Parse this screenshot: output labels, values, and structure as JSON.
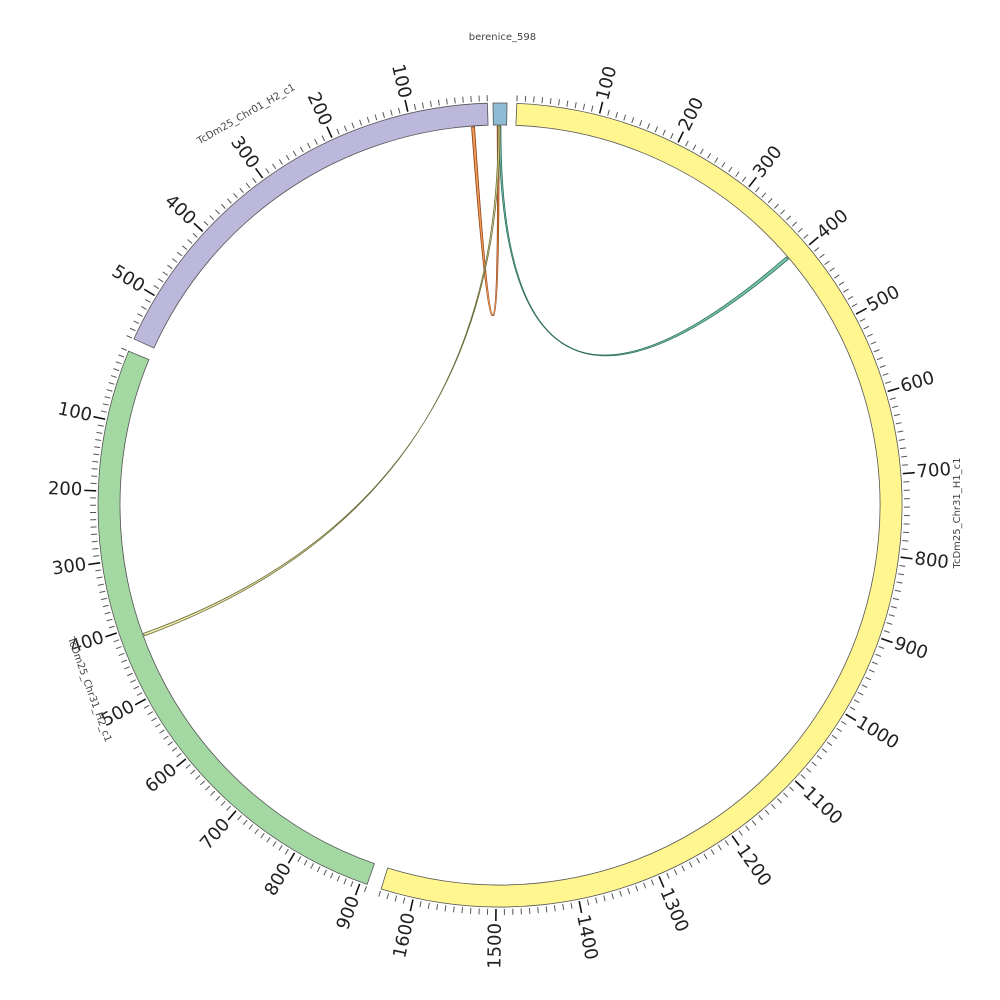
{
  "diagram": {
    "type": "circos",
    "segments": [
      {
        "id": "berenice",
        "name": "berenice_598",
        "length": 14,
        "color": "#8fbcd4",
        "major_tick_labels": []
      },
      {
        "id": "chr31h1",
        "name": "TcDm25_Chr31_H1_c1",
        "length": 1640,
        "color": "#fff68f",
        "major_tick_labels": [
          "100",
          "200",
          "300",
          "400",
          "500",
          "600",
          "700",
          "800",
          "900",
          "1000",
          "1100",
          "1200",
          "1300",
          "1400",
          "1500",
          "1600"
        ]
      },
      {
        "id": "chr31h2",
        "name": "TcDm25_Chr31_H2_c1",
        "length": 910,
        "color": "#a3d8a3",
        "major_tick_labels": [
          "100",
          "200",
          "300",
          "400",
          "500",
          "600",
          "700",
          "800",
          "900"
        ]
      },
      {
        "id": "chr01h2",
        "name": "TcDm25_Chr01_H2_c1",
        "length": 560,
        "color": "#bcb8dc",
        "major_tick_labels": [
          "100",
          "200",
          "300",
          "400",
          "500"
        ]
      }
    ],
    "links": [
      {
        "from_segment": "berenice",
        "from_pos": 7,
        "to_segment": "chr31h1",
        "to_pos": 395,
        "color": "#5fb89a",
        "edge": "#2e6f5f"
      },
      {
        "from_segment": "berenice",
        "from_pos": 5,
        "to_segment": "chr01h2",
        "to_pos": 20,
        "color": "#f08a3c",
        "edge": "#8a3d10"
      },
      {
        "from_segment": "berenice",
        "from_pos": 6,
        "to_segment": "chr31h2",
        "to_pos": 415,
        "color": "#e8e29a",
        "edge": "#6b6b3a"
      }
    ]
  }
}
